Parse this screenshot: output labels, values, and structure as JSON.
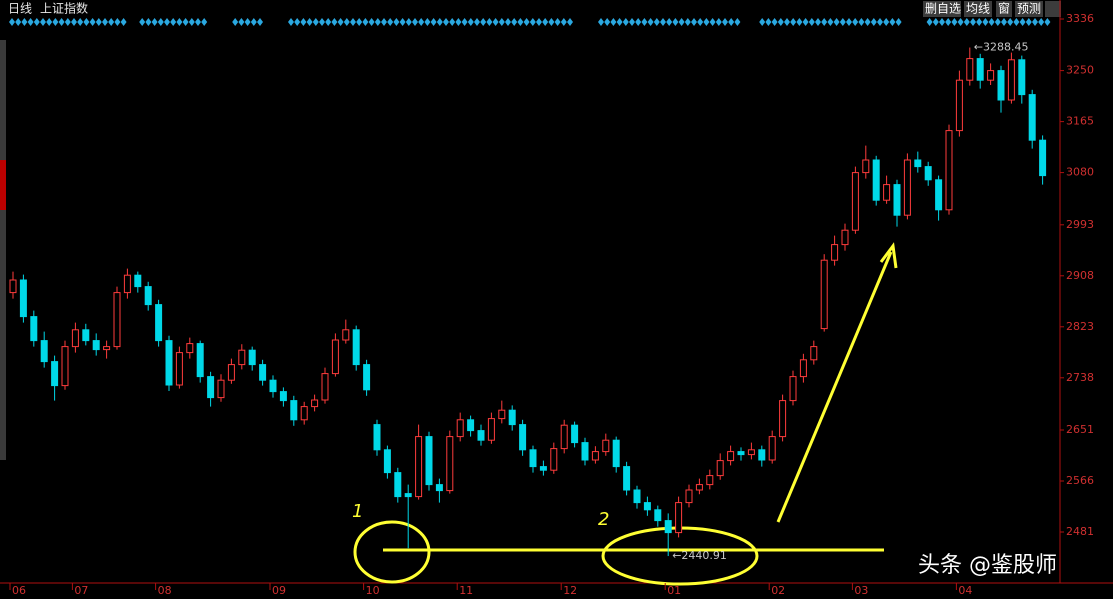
{
  "header": {
    "period": "日线",
    "name": "上证指数",
    "buttons": [
      "删自选",
      "均线",
      "窗",
      "预测"
    ]
  },
  "watermark": "头条 @鉴股师",
  "handwritten_marks": [
    "1",
    "2"
  ],
  "chart_data": {
    "type": "candlestick",
    "categories": [
      "06",
      null,
      null,
      null,
      null,
      null,
      "07",
      null,
      null,
      null,
      null,
      null,
      null,
      null,
      "08",
      null,
      null,
      null,
      null,
      null,
      null,
      null,
      null,
      null,
      null,
      "09",
      null,
      null,
      null,
      null,
      null,
      null,
      null,
      null,
      "10",
      null,
      null,
      null,
      null,
      null,
      null,
      null,
      null,
      "11",
      null,
      null,
      null,
      null,
      null,
      null,
      null,
      null,
      null,
      "12",
      null,
      null,
      null,
      null,
      null,
      null,
      null,
      null,
      null,
      "01",
      null,
      null,
      null,
      null,
      null,
      null,
      null,
      null,
      null,
      "02",
      null,
      null,
      null,
      null,
      null,
      null,
      null,
      "03",
      null,
      null,
      null,
      null,
      null,
      null,
      null,
      null,
      null,
      "04",
      null,
      null,
      null,
      null,
      null,
      null,
      null,
      null
    ],
    "ohlc": [
      [
        2880,
        2915,
        2870,
        2901
      ],
      [
        2901,
        2910,
        2830,
        2840
      ],
      [
        2840,
        2850,
        2790,
        2800
      ],
      [
        2800,
        2815,
        2755,
        2765
      ],
      [
        2765,
        2775,
        2700,
        2725
      ],
      [
        2725,
        2800,
        2718,
        2790
      ],
      [
        2790,
        2830,
        2780,
        2818
      ],
      [
        2818,
        2828,
        2792,
        2800
      ],
      [
        2800,
        2812,
        2775,
        2785
      ],
      [
        2785,
        2800,
        2770,
        2790
      ],
      [
        2790,
        2890,
        2785,
        2880
      ],
      [
        2880,
        2920,
        2870,
        2909
      ],
      [
        2909,
        2915,
        2880,
        2890
      ],
      [
        2890,
        2898,
        2850,
        2860
      ],
      [
        2860,
        2868,
        2790,
        2800
      ],
      [
        2800,
        2808,
        2716,
        2726
      ],
      [
        2726,
        2790,
        2720,
        2780
      ],
      [
        2780,
        2805,
        2770,
        2795
      ],
      [
        2795,
        2800,
        2730,
        2740
      ],
      [
        2740,
        2748,
        2690,
        2705
      ],
      [
        2705,
        2744,
        2698,
        2734
      ],
      [
        2734,
        2770,
        2728,
        2760
      ],
      [
        2760,
        2794,
        2752,
        2784
      ],
      [
        2784,
        2790,
        2750,
        2760
      ],
      [
        2760,
        2768,
        2725,
        2734
      ],
      [
        2734,
        2742,
        2705,
        2715
      ],
      [
        2715,
        2722,
        2690,
        2700
      ],
      [
        2700,
        2708,
        2658,
        2668
      ],
      [
        2668,
        2698,
        2660,
        2690
      ],
      [
        2690,
        2710,
        2682,
        2701
      ],
      [
        2701,
        2755,
        2695,
        2745
      ],
      [
        2745,
        2812,
        2740,
        2801
      ],
      [
        2801,
        2835,
        2795,
        2818
      ],
      [
        2818,
        2825,
        2750,
        2760
      ],
      [
        2760,
        2768,
        2708,
        2718
      ],
      [
        2660,
        2668,
        2608,
        2618
      ],
      [
        2618,
        2625,
        2570,
        2580
      ],
      [
        2580,
        2588,
        2530,
        2540
      ],
      [
        2545,
        2560,
        2454,
        2540
      ],
      [
        2540,
        2660,
        2535,
        2640
      ],
      [
        2640,
        2648,
        2550,
        2560
      ],
      [
        2560,
        2570,
        2530,
        2550
      ],
      [
        2550,
        2650,
        2545,
        2640
      ],
      [
        2640,
        2680,
        2632,
        2668
      ],
      [
        2668,
        2675,
        2640,
        2650
      ],
      [
        2650,
        2660,
        2625,
        2634
      ],
      [
        2634,
        2680,
        2628,
        2670
      ],
      [
        2670,
        2700,
        2662,
        2684
      ],
      [
        2684,
        2692,
        2650,
        2660
      ],
      [
        2660,
        2668,
        2608,
        2618
      ],
      [
        2618,
        2625,
        2580,
        2590
      ],
      [
        2590,
        2600,
        2575,
        2584
      ],
      [
        2584,
        2630,
        2578,
        2620
      ],
      [
        2620,
        2668,
        2612,
        2659
      ],
      [
        2659,
        2665,
        2622,
        2630
      ],
      [
        2630,
        2638,
        2592,
        2601
      ],
      [
        2601,
        2624,
        2595,
        2615
      ],
      [
        2615,
        2645,
        2608,
        2634
      ],
      [
        2634,
        2640,
        2580,
        2590
      ],
      [
        2590,
        2598,
        2542,
        2551
      ],
      [
        2551,
        2558,
        2520,
        2530
      ],
      [
        2530,
        2540,
        2508,
        2518
      ],
      [
        2518,
        2525,
        2490,
        2500
      ],
      [
        2500,
        2512,
        2440.91,
        2480
      ],
      [
        2480,
        2540,
        2472,
        2530
      ],
      [
        2530,
        2560,
        2522,
        2551
      ],
      [
        2551,
        2570,
        2544,
        2560
      ],
      [
        2560,
        2585,
        2552,
        2575
      ],
      [
        2575,
        2612,
        2568,
        2600
      ],
      [
        2600,
        2625,
        2592,
        2615
      ],
      [
        2615,
        2622,
        2600,
        2610
      ],
      [
        2610,
        2630,
        2602,
        2618
      ],
      [
        2618,
        2625,
        2590,
        2601
      ],
      [
        2601,
        2650,
        2595,
        2640
      ],
      [
        2640,
        2710,
        2632,
        2700
      ],
      [
        2700,
        2750,
        2692,
        2740
      ],
      [
        2740,
        2778,
        2730,
        2768
      ],
      [
        2768,
        2800,
        2760,
        2790
      ],
      [
        2820,
        2944,
        2815,
        2934
      ],
      [
        2934,
        2975,
        2925,
        2960
      ],
      [
        2960,
        2995,
        2950,
        2984
      ],
      [
        2984,
        3090,
        2978,
        3080
      ],
      [
        3080,
        3125,
        3070,
        3101
      ],
      [
        3101,
        3108,
        3025,
        3034
      ],
      [
        3034,
        3075,
        3028,
        3060
      ],
      [
        3060,
        3068,
        2990,
        3009
      ],
      [
        3009,
        3112,
        3002,
        3101
      ],
      [
        3101,
        3115,
        3080,
        3090
      ],
      [
        3090,
        3098,
        3058,
        3068
      ],
      [
        3068,
        3075,
        3000,
        3018
      ],
      [
        3018,
        3160,
        3010,
        3150
      ],
      [
        3150,
        3250,
        3140,
        3234
      ],
      [
        3234,
        3288.45,
        3225,
        3270
      ],
      [
        3270,
        3278,
        3220,
        3234
      ],
      [
        3234,
        3262,
        3226,
        3250
      ],
      [
        3250,
        3258,
        3180,
        3201
      ],
      [
        3201,
        3280,
        3195,
        3268
      ],
      [
        3268,
        3275,
        3195,
        3210
      ],
      [
        3210,
        3218,
        3120,
        3134
      ],
      [
        3134,
        3142,
        3060,
        3075
      ]
    ],
    "up_color": "#ff3c3c",
    "down_color": "#00d8e8",
    "ylim": [
      2396,
      3336
    ],
    "yticks": [
      3336,
      3250,
      3165,
      3080,
      2993,
      2908,
      2823,
      2738,
      2651,
      2566,
      2481
    ],
    "annotations": [
      {
        "value": 3288.45,
        "label": "←3288.45"
      },
      {
        "value": 2440.91,
        "label": "←2440.91"
      }
    ]
  }
}
